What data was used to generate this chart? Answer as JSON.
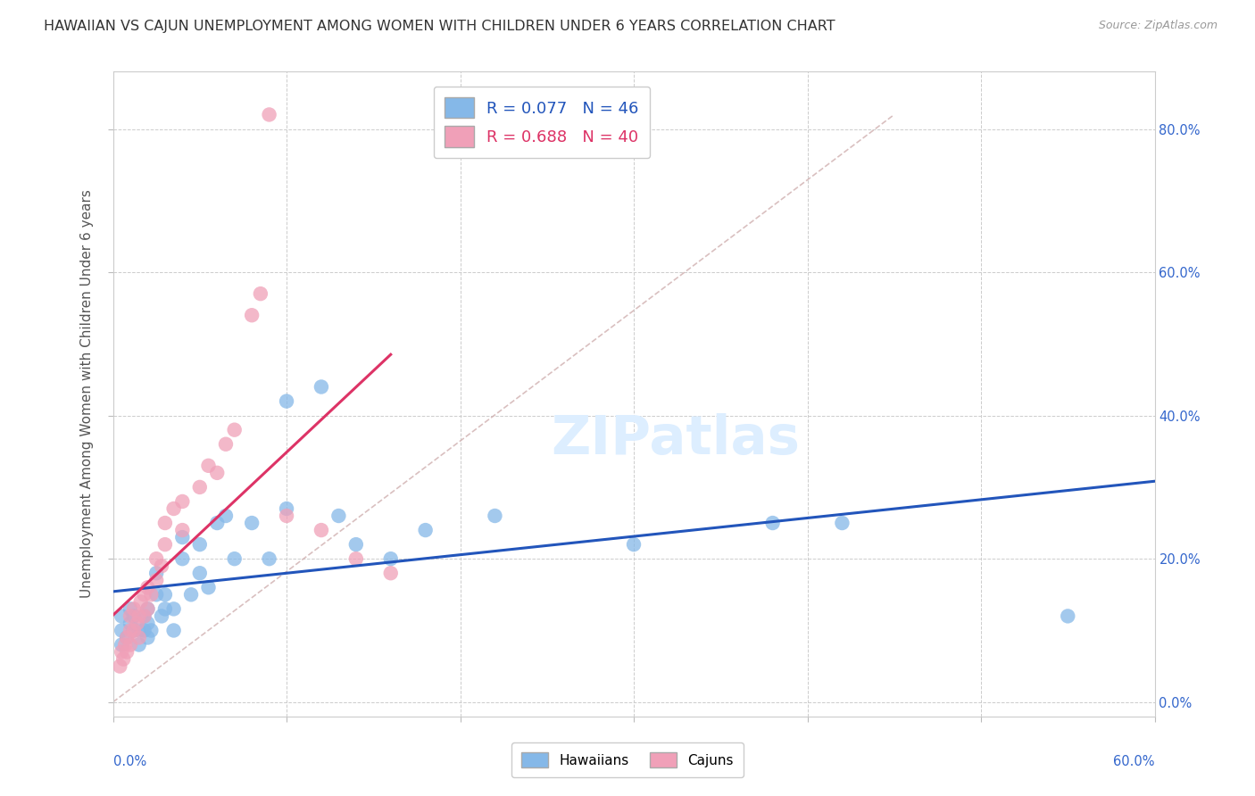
{
  "title": "HAWAIIAN VS CAJUN UNEMPLOYMENT AMONG WOMEN WITH CHILDREN UNDER 6 YEARS CORRELATION CHART",
  "source": "Source: ZipAtlas.com",
  "ylabel": "Unemployment Among Women with Children Under 6 years",
  "xlim": [
    0.0,
    0.6
  ],
  "ylim": [
    -0.02,
    0.88
  ],
  "ytick_values": [
    0.0,
    0.2,
    0.4,
    0.6,
    0.8
  ],
  "xtick_values": [
    0.0,
    0.1,
    0.2,
    0.3,
    0.4,
    0.5,
    0.6
  ],
  "background_color": "#ffffff",
  "r_hawaiian": "0.077",
  "n_hawaiian": "46",
  "r_cajun": "0.688",
  "n_cajun": "40",
  "hawaiian_color": "#85b8e8",
  "cajun_color": "#f0a0b8",
  "hawaiian_line_color": "#2255bb",
  "cajun_line_color": "#dd3366",
  "diagonal_color": "#d0b0b0",
  "hawaiians_x": [
    0.005,
    0.005,
    0.005,
    0.008,
    0.01,
    0.01,
    0.012,
    0.012,
    0.015,
    0.015,
    0.018,
    0.018,
    0.02,
    0.02,
    0.02,
    0.022,
    0.025,
    0.025,
    0.028,
    0.03,
    0.03,
    0.035,
    0.035,
    0.04,
    0.04,
    0.045,
    0.05,
    0.05,
    0.055,
    0.06,
    0.065,
    0.07,
    0.08,
    0.09,
    0.1,
    0.1,
    0.12,
    0.13,
    0.14,
    0.16,
    0.18,
    0.22,
    0.3,
    0.38,
    0.42,
    0.55
  ],
  "hawaiians_y": [
    0.08,
    0.1,
    0.12,
    0.09,
    0.11,
    0.13,
    0.1,
    0.12,
    0.08,
    0.1,
    0.1,
    0.12,
    0.09,
    0.11,
    0.13,
    0.1,
    0.15,
    0.18,
    0.12,
    0.13,
    0.15,
    0.1,
    0.13,
    0.2,
    0.23,
    0.15,
    0.18,
    0.22,
    0.16,
    0.25,
    0.26,
    0.2,
    0.25,
    0.2,
    0.27,
    0.42,
    0.44,
    0.26,
    0.22,
    0.2,
    0.24,
    0.26,
    0.22,
    0.25,
    0.25,
    0.12
  ],
  "cajuns_x": [
    0.004,
    0.005,
    0.006,
    0.007,
    0.008,
    0.008,
    0.01,
    0.01,
    0.01,
    0.012,
    0.012,
    0.014,
    0.015,
    0.015,
    0.016,
    0.018,
    0.018,
    0.02,
    0.02,
    0.022,
    0.025,
    0.025,
    0.028,
    0.03,
    0.03,
    0.035,
    0.04,
    0.04,
    0.05,
    0.055,
    0.06,
    0.065,
    0.07,
    0.08,
    0.085,
    0.09,
    0.1,
    0.12,
    0.14,
    0.16
  ],
  "cajuns_y": [
    0.05,
    0.07,
    0.06,
    0.08,
    0.07,
    0.09,
    0.08,
    0.1,
    0.12,
    0.1,
    0.13,
    0.11,
    0.09,
    0.12,
    0.14,
    0.12,
    0.15,
    0.13,
    0.16,
    0.15,
    0.17,
    0.2,
    0.19,
    0.22,
    0.25,
    0.27,
    0.24,
    0.28,
    0.3,
    0.33,
    0.32,
    0.36,
    0.38,
    0.54,
    0.57,
    0.82,
    0.26,
    0.24,
    0.2,
    0.18
  ]
}
